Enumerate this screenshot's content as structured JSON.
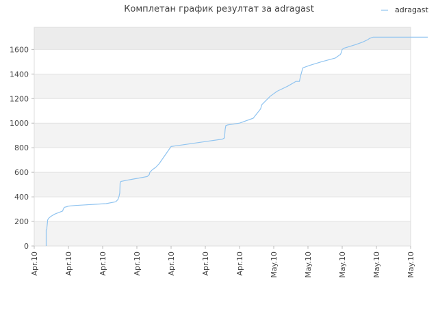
{
  "chart_data": {
    "type": "line",
    "title": "Комплетан график резултат за adragast",
    "xlabel": "",
    "ylabel": "",
    "ylim": [
      0,
      1780
    ],
    "y_ticks": [
      0,
      200,
      400,
      600,
      800,
      1000,
      1200,
      1400,
      1600
    ],
    "x_tick_labels": [
      "Apr.10",
      "Apr.10",
      "Apr.10",
      "Apr.10",
      "Apr.10",
      "Apr.10",
      "Apr.10",
      "May.10",
      "May.10",
      "May.10",
      "May.10",
      "May.10"
    ],
    "grid": true,
    "legend_position": "top-right",
    "line_color": "#90c4f0",
    "series": [
      {
        "name": "adragast",
        "x": [
          0.35,
          0.35,
          0.37,
          0.37,
          0.39,
          0.39,
          0.42,
          0.48,
          0.6,
          0.83,
          0.85,
          0.87,
          0.88,
          0.95,
          1.0,
          1.2,
          1.5,
          1.8,
          2.1,
          2.38,
          2.4,
          2.45,
          2.46,
          2.48,
          2.49,
          2.5,
          2.51,
          2.53,
          2.7,
          2.9,
          3.0,
          3.2,
          3.3,
          3.34,
          3.36,
          3.38,
          3.45,
          3.55,
          3.65,
          4.0,
          4.5,
          5.0,
          5.5,
          5.56,
          5.58,
          5.6,
          5.65,
          6.0,
          6.4,
          6.57,
          6.6,
          6.62,
          6.63,
          6.65,
          6.9,
          7.1,
          7.4,
          7.65,
          7.75,
          7.78,
          7.8,
          7.85,
          8.05,
          8.4,
          8.8,
          8.85,
          8.9,
          8.95,
          8.98,
          9.0,
          9.05,
          9.4,
          9.6,
          9.75,
          9.8,
          9.85,
          9.9,
          9.95,
          10.1,
          10.3,
          10.5,
          10.7,
          10.8,
          10.9,
          11.0,
          11.3,
          11.5
        ],
        "y": [
          0,
          130,
          140,
          150,
          200,
          210,
          225,
          240,
          260,
          285,
          300,
          310,
          315,
          320,
          325,
          330,
          335,
          340,
          345,
          360,
          365,
          380,
          390,
          405,
          420,
          430,
          510,
          525,
          535,
          545,
          550,
          560,
          565,
          575,
          580,
          600,
          620,
          640,
          670,
          810,
          830,
          850,
          870,
          880,
          950,
          980,
          985,
          1000,
          1040,
          1100,
          1110,
          1120,
          1130,
          1150,
          1220,
          1260,
          1300,
          1340,
          1340,
          1380,
          1400,
          1450,
          1470,
          1500,
          1530,
          1540,
          1550,
          1560,
          1580,
          1600,
          1610,
          1640,
          1660,
          1680,
          1690,
          1695,
          1700,
          1700,
          1700,
          1700,
          1700,
          1700,
          1700,
          1700,
          1700,
          1700,
          1700
        ]
      }
    ]
  }
}
